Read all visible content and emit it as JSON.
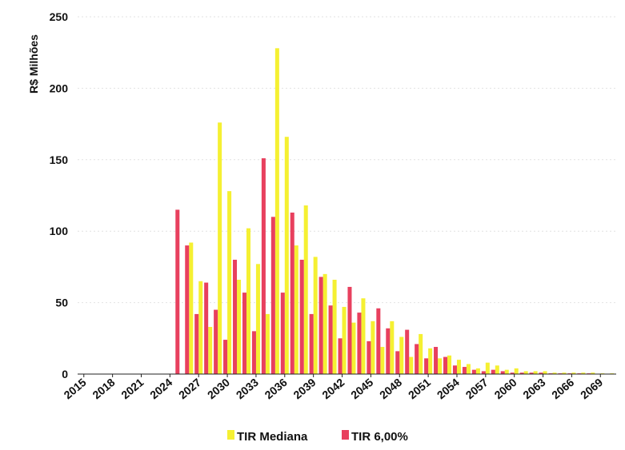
{
  "chart_data": {
    "type": "bar",
    "ylabel": "R$ Milhões",
    "ylim": [
      0,
      250
    ],
    "yticks": [
      0,
      50,
      100,
      150,
      200,
      250
    ],
    "grid": true,
    "legend_position": "bottom",
    "x": [
      2015,
      2016,
      2017,
      2018,
      2019,
      2020,
      2021,
      2022,
      2023,
      2024,
      2025,
      2026,
      2027,
      2028,
      2029,
      2030,
      2031,
      2032,
      2033,
      2034,
      2035,
      2036,
      2037,
      2038,
      2039,
      2040,
      2041,
      2042,
      2043,
      2044,
      2045,
      2046,
      2047,
      2048,
      2049,
      2050,
      2051,
      2052,
      2053,
      2054,
      2055,
      2056,
      2057,
      2058,
      2059,
      2060,
      2061,
      2062,
      2063,
      2064,
      2065,
      2066,
      2067,
      2068,
      2069,
      2070
    ],
    "xtick_labels": [
      "2015",
      "2018",
      "2021",
      "2024",
      "2027",
      "2030",
      "2033",
      "2036",
      "2039",
      "2042",
      "2045",
      "2048",
      "2051",
      "2054",
      "2057",
      "2060",
      "2063",
      "2066",
      "2069"
    ],
    "series": [
      {
        "name": "TIR Mediana",
        "color": "#f5f032",
        "values": [
          0,
          0,
          0,
          0,
          0,
          0,
          0,
          0,
          0,
          0,
          0,
          92,
          65,
          33,
          176,
          128,
          66,
          102,
          77,
          42,
          228,
          166,
          90,
          118,
          82,
          70,
          66,
          47,
          36,
          53,
          37,
          19,
          37,
          26,
          12,
          28,
          18,
          11,
          13,
          10,
          7,
          4,
          8,
          6,
          3,
          4,
          2,
          2,
          2,
          1,
          1,
          1,
          1,
          1,
          0.5,
          0.5
        ]
      },
      {
        "name": "TIR 6,00%",
        "color": "#e8405e",
        "values": [
          0,
          0,
          0,
          0,
          0,
          0,
          0,
          0,
          0,
          0,
          115,
          90,
          42,
          64,
          45,
          24,
          80,
          57,
          30,
          151,
          110,
          57,
          113,
          80,
          42,
          68,
          48,
          25,
          61,
          43,
          23,
          46,
          32,
          16,
          31,
          21,
          11,
          19,
          12,
          6,
          5,
          3,
          2,
          3,
          2,
          1,
          1,
          1,
          1,
          0.5,
          0.5,
          0.5,
          0.5,
          0.5,
          0,
          0
        ]
      }
    ]
  }
}
